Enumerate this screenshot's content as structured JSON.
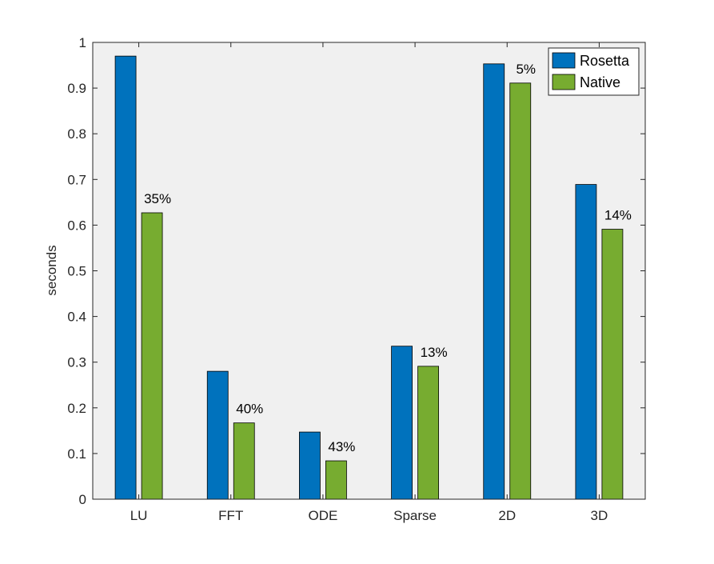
{
  "chart_data": {
    "type": "bar",
    "ylabel": "seconds",
    "ylim": [
      0,
      1
    ],
    "yticks": [
      "0",
      "0.1",
      "0.2",
      "0.3",
      "0.4",
      "0.5",
      "0.6",
      "0.7",
      "0.8",
      "0.9",
      "1"
    ],
    "categories": [
      "LU",
      "FFT",
      "ODE",
      "Sparse",
      "2D",
      "3D"
    ],
    "series": [
      {
        "name": "Rosetta",
        "color": "#0072BD",
        "values": [
          0.97,
          0.28,
          0.147,
          0.335,
          0.953,
          0.689
        ]
      },
      {
        "name": "Native",
        "color": "#77AC30",
        "values": [
          0.627,
          0.167,
          0.084,
          0.291,
          0.911,
          0.591
        ]
      }
    ],
    "annotations": [
      "35%",
      "40%",
      "43%",
      "13%",
      "5%",
      "14%"
    ],
    "grid": false,
    "legend_position": "top-right",
    "plot_background": "#F0F0F0"
  }
}
